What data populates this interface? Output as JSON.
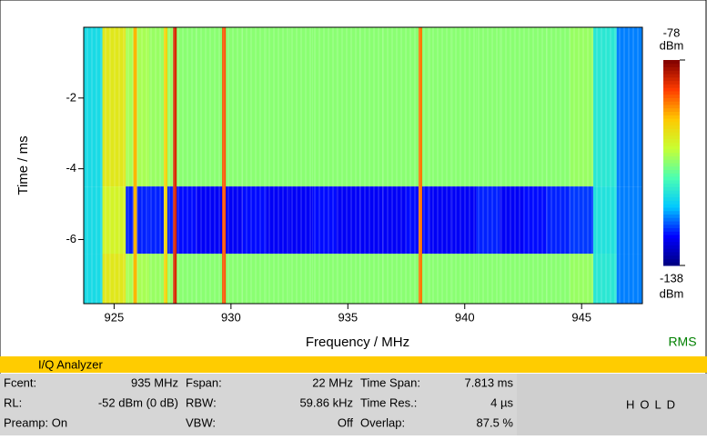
{
  "chart_data": {
    "type": "heatmap",
    "xlabel": "Frequency / MHz",
    "ylabel": "Time / ms",
    "xlim": [
      923.7,
      947.6
    ],
    "xticks": [
      925,
      930,
      935,
      940,
      945
    ],
    "ylim": [
      -7.813,
      0
    ],
    "yticks": [
      -2,
      -4,
      -6
    ],
    "xbins": [
      923.7,
      924.5,
      925.5,
      926.5,
      927.5,
      928.5,
      929.5,
      930.5,
      931.5,
      932.5,
      933.5,
      934.5,
      935.5,
      936.5,
      937.5,
      938.5,
      939.5,
      940.5,
      941.5,
      942.5,
      943.5,
      944.5,
      945.5,
      946.5,
      947.6
    ],
    "ybins": [
      0,
      -4.5,
      -6.4,
      -7.813
    ],
    "z": [
      [
        -118,
        -100,
        -106,
        -107,
        -108,
        -108,
        -108,
        -108,
        -108,
        -108,
        -108,
        -108,
        -108,
        -108,
        -108,
        -108,
        -108,
        -108,
        -108,
        -108,
        -108,
        -107,
        -116,
        -124
      ],
      [
        -118,
        -102,
        -128,
        -128,
        -129,
        -130,
        -130,
        -129,
        -130,
        -130,
        -129,
        -130,
        -130,
        -130,
        -129,
        -130,
        -130,
        -128,
        -130,
        -129,
        -128,
        -127,
        -117,
        -124
      ],
      [
        -118,
        -100,
        -106,
        -107,
        -108,
        -108,
        -108,
        -108,
        -108,
        -108,
        -108,
        -108,
        -108,
        -108,
        -108,
        -108,
        -108,
        -108,
        -108,
        -108,
        -108,
        -107,
        -116,
        -124
      ]
    ],
    "carriers": {
      "x": [
        925.9,
        927.2,
        927.6,
        929.7,
        938.1
      ],
      "values": [
        -94,
        -97,
        -84,
        -88,
        -90
      ]
    },
    "clim": [
      -138,
      -78
    ],
    "clim_labels": {
      "top": "-78",
      "bottom": "-138"
    },
    "cunit": "dBm",
    "colormap": [
      "#00007f",
      "#0000ff",
      "#00c8ff",
      "#4cffb2",
      "#c8ff32",
      "#ffc800",
      "#ff3c00",
      "#7f0000"
    ],
    "detector": "RMS"
  },
  "panel": {
    "title": "I/Q Analyzer",
    "status": "HOLD",
    "rows": [
      [
        {
          "label": "Fcent:",
          "value": "935 MHz"
        },
        {
          "label": "Fspan:",
          "value": "22 MHz"
        },
        {
          "label": "Time Span:",
          "value": "7.813 ms"
        }
      ],
      [
        {
          "label": "RL:",
          "value": "-52 dBm (0 dB)"
        },
        {
          "label": "RBW:",
          "value": "59.86 kHz"
        },
        {
          "label": "Time Res.:",
          "value": "4 µs"
        }
      ],
      [
        {
          "label": "Preamp: On"
        },
        {
          "label": "VBW:",
          "value": "Off"
        },
        {
          "label": "Overlap:",
          "value": "87.5 %"
        }
      ]
    ]
  }
}
